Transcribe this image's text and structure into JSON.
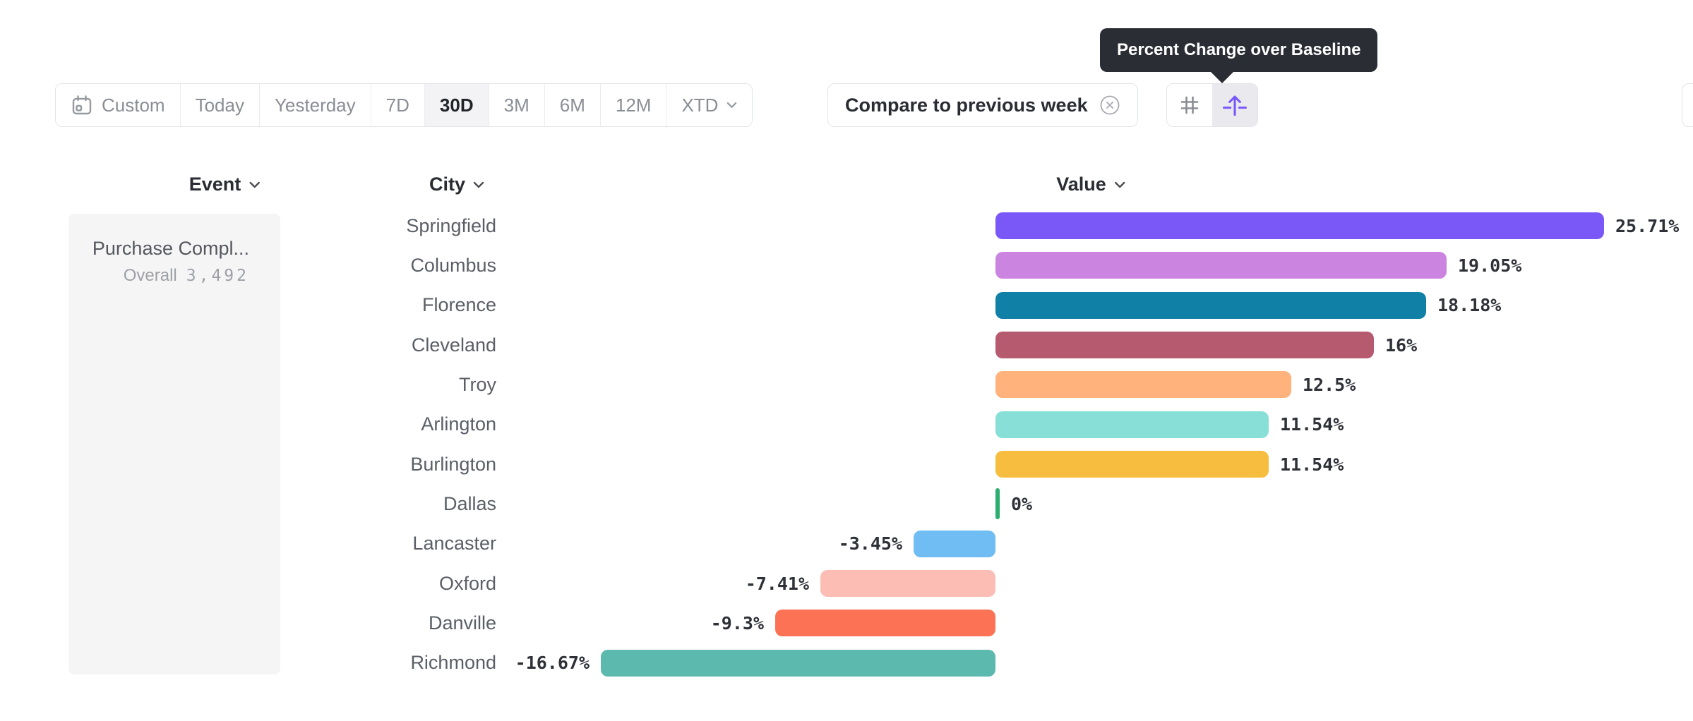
{
  "tooltip": {
    "text": "Percent Change over Baseline",
    "bg_color": "#2B2D35"
  },
  "toolbar": {
    "date_buttons": [
      {
        "label": "Custom",
        "icon": "calendar-icon",
        "active": false
      },
      {
        "label": "Today",
        "active": false
      },
      {
        "label": "Yesterday",
        "active": false
      },
      {
        "label": "7D",
        "active": false
      },
      {
        "label": "30D",
        "active": true
      },
      {
        "label": "3M",
        "active": false
      },
      {
        "label": "6M",
        "active": false
      },
      {
        "label": "12M",
        "active": false
      },
      {
        "label": "XTD",
        "chevron": true,
        "active": false
      }
    ],
    "compare_chip": {
      "label": "Compare to previous week",
      "icon": "close-circle-icon"
    },
    "view_toggle": {
      "buttons": [
        {
          "icon": "hash-icon",
          "active": false
        },
        {
          "icon": "percent-change-icon",
          "active": true,
          "accent_color": "#7857FA"
        }
      ]
    }
  },
  "columns": {
    "event": "Event",
    "city": "City",
    "value": "Value"
  },
  "event_panel": {
    "title": "Purchase Compl...",
    "overall_label": "Overall",
    "overall_value": "3,492"
  },
  "chart_data": {
    "type": "bar",
    "orientation": "horizontal",
    "title": "",
    "xlabel": "City",
    "ylabel": "Value",
    "value_unit": "percent change over baseline",
    "baseline": 0,
    "xlim": [
      -16.67,
      25.71
    ],
    "grid": false,
    "legend": false,
    "categories": [
      "Springfield",
      "Columbus",
      "Florence",
      "Cleveland",
      "Troy",
      "Arlington",
      "Burlington",
      "Dallas",
      "Lancaster",
      "Oxford",
      "Danville",
      "Richmond"
    ],
    "values": [
      25.71,
      19.05,
      18.18,
      16,
      12.5,
      11.54,
      11.54,
      0,
      -3.45,
      -7.41,
      -9.3,
      -16.67
    ],
    "value_labels": [
      "25.71%",
      "19.05%",
      "18.18%",
      "16%",
      "12.5%",
      "11.54%",
      "11.54%",
      "0%",
      "-3.45%",
      "-7.41%",
      "-9.3%",
      "-16.67%"
    ],
    "bar_colors": [
      "#7958F7",
      "#CB85E1",
      "#1180A6",
      "#B65A70",
      "#FFB27C",
      "#87DFD8",
      "#F6BD3E",
      "#2CAE70",
      "#70BDF4",
      "#FCBDB4",
      "#FB7254",
      "#5CB9AD"
    ]
  }
}
